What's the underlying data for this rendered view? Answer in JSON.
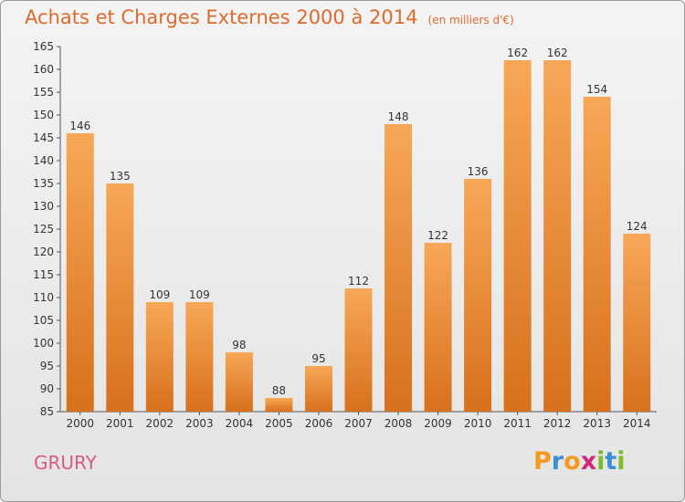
{
  "header": {
    "title": "Achats et Charges Externes 2000 à 2014",
    "subtitle": "(en milliers d'€)"
  },
  "commune": {
    "name": "GRURY"
  },
  "logo": {
    "letters": [
      {
        "char": "P",
        "color": "#f39a1e"
      },
      {
        "char": "r",
        "color": "#3b8fd6"
      },
      {
        "char": "o",
        "color": "#f39a1e"
      },
      {
        "char": "x",
        "color": "#d4267a"
      },
      {
        "char": "i",
        "color": "#7cbb2a"
      },
      {
        "char": "t",
        "color": "#3b8fd6"
      },
      {
        "char": "i",
        "color": "#7cbb2a"
      }
    ]
  },
  "chart_data": {
    "type": "bar",
    "title": "Achats et Charges Externes 2000 à 2014",
    "subtitle": "(en milliers d'€)",
    "categories": [
      "2000",
      "2001",
      "2002",
      "2003",
      "2004",
      "2005",
      "2006",
      "2007",
      "2008",
      "2009",
      "2010",
      "2011",
      "2012",
      "2013",
      "2014"
    ],
    "values": [
      146,
      135,
      109,
      109,
      98,
      88,
      95,
      112,
      148,
      122,
      136,
      162,
      162,
      154,
      124
    ],
    "ylim": [
      85,
      165
    ],
    "yticks": [
      85,
      90,
      95,
      100,
      105,
      110,
      115,
      120,
      125,
      130,
      135,
      140,
      145,
      150,
      155,
      160,
      165
    ],
    "grid": false,
    "data_labels": true,
    "bar_color_top": "#f7a857",
    "bar_color_bottom": "#d8701c",
    "text_color": "#333333",
    "axis_color": "#555555"
  }
}
